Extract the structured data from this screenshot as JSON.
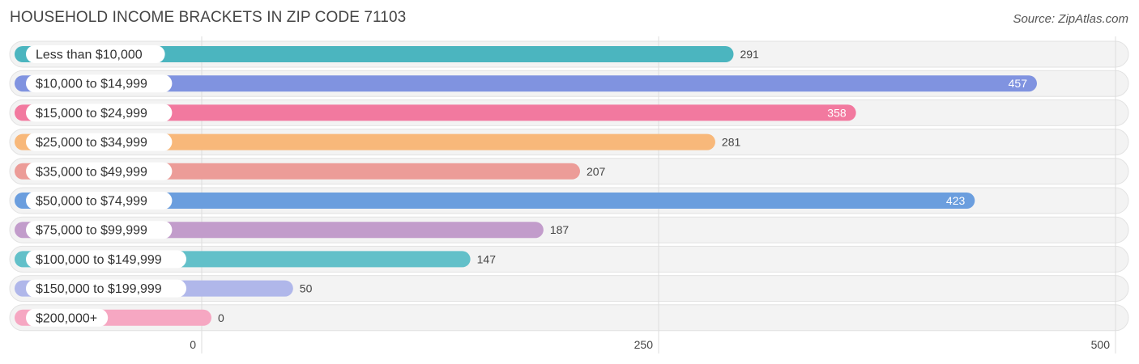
{
  "header": {
    "title": "HOUSEHOLD INCOME BRACKETS IN ZIP CODE 71103",
    "source": "Source: ZipAtlas.com"
  },
  "chart_data": {
    "type": "bar",
    "orientation": "horizontal",
    "categories": [
      "Less than $10,000",
      "$10,000 to $14,999",
      "$15,000 to $24,999",
      "$25,000 to $34,999",
      "$35,000 to $49,999",
      "$50,000 to $74,999",
      "$75,000 to $99,999",
      "$100,000 to $149,999",
      "$150,000 to $199,999",
      "$200,000+"
    ],
    "values": [
      291,
      457,
      358,
      281,
      207,
      423,
      187,
      147,
      50,
      0
    ],
    "colors": [
      "#4bb5bf",
      "#8093e0",
      "#f2799f",
      "#f8b87a",
      "#ec9c98",
      "#6b9ede",
      "#c29ccb",
      "#62c0c9",
      "#b0b7ea",
      "#f6a7c2"
    ],
    "xlim": [
      0,
      500
    ],
    "xticks": [
      0,
      250,
      500
    ],
    "xtick_labels": [
      "0",
      "250",
      "500"
    ],
    "grid": true,
    "value_labels_inside": [
      false,
      true,
      true,
      false,
      false,
      true,
      false,
      false,
      false,
      false
    ]
  }
}
